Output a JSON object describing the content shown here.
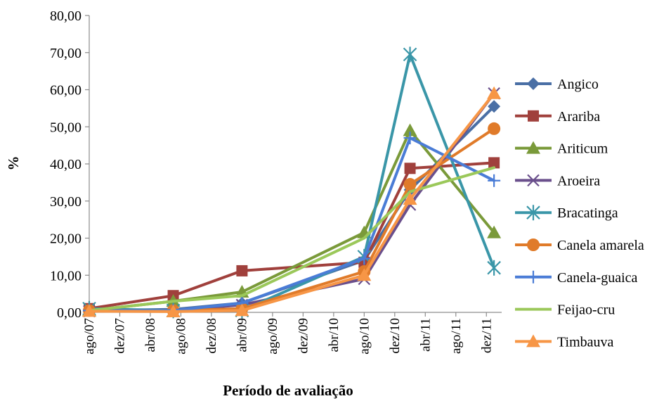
{
  "chart_data": {
    "type": "line",
    "title": "",
    "xlabel": "Período de avaliação",
    "ylabel": "%",
    "ylim": [
      0,
      80
    ],
    "y_ticks": [
      "0,00",
      "10,00",
      "20,00",
      "30,00",
      "40,00",
      "50,00",
      "60,00",
      "70,00",
      "80,00"
    ],
    "x_ticks": [
      "ago/07",
      "dez/07",
      "abr/08",
      "ago/08",
      "dez/08",
      "abr/09",
      "ago/09",
      "dez/09",
      "abr/10",
      "ago/10",
      "dez/10",
      "abr/11",
      "ago/11",
      "dez/11"
    ],
    "x": [
      "2007-08",
      "2008-07",
      "2009-04",
      "2010-08",
      "2011-02",
      "2012-01"
    ],
    "grid": false,
    "legend_position": "right",
    "series": [
      {
        "name": "Angico",
        "color": "#4A6FA5",
        "marker": "diamond",
        "values": [
          0.5,
          0.8,
          2.5,
          14.0,
          33.0,
          55.5
        ]
      },
      {
        "name": "Arariba",
        "color": "#A0403C",
        "marker": "square",
        "values": [
          1.0,
          4.5,
          11.2,
          13.5,
          38.8,
          40.3
        ]
      },
      {
        "name": "Ariticum",
        "color": "#7A9A3A",
        "marker": "triangle",
        "values": [
          0.5,
          3.0,
          5.5,
          21.5,
          49.0,
          21.5
        ]
      },
      {
        "name": "Aroeira",
        "color": "#6A4F8C",
        "marker": "x",
        "values": [
          0.3,
          0.5,
          2.0,
          9.0,
          29.0,
          59.0
        ]
      },
      {
        "name": "Bracatinga",
        "color": "#3A96A8",
        "marker": "star",
        "values": [
          1.0,
          0.5,
          0.5,
          15.0,
          69.5,
          12.0
        ]
      },
      {
        "name": "Canela amarela",
        "color": "#E07B2A",
        "marker": "circle",
        "values": [
          0.5,
          0.5,
          1.0,
          11.0,
          34.5,
          49.5
        ]
      },
      {
        "name": "Canela-guaica",
        "color": "#4A7CD6",
        "marker": "plus",
        "values": [
          0.5,
          0.5,
          2.5,
          14.5,
          47.0,
          35.5
        ]
      },
      {
        "name": "Feijao-cru",
        "color": "#9BC85A",
        "marker": "none",
        "values": [
          0.5,
          3.0,
          4.5,
          20.0,
          32.5,
          39.0
        ]
      },
      {
        "name": "Timbauva",
        "color": "#F79646",
        "marker": "triangle",
        "values": [
          0.3,
          0.2,
          0.5,
          10.0,
          30.5,
          59.0
        ]
      }
    ]
  }
}
